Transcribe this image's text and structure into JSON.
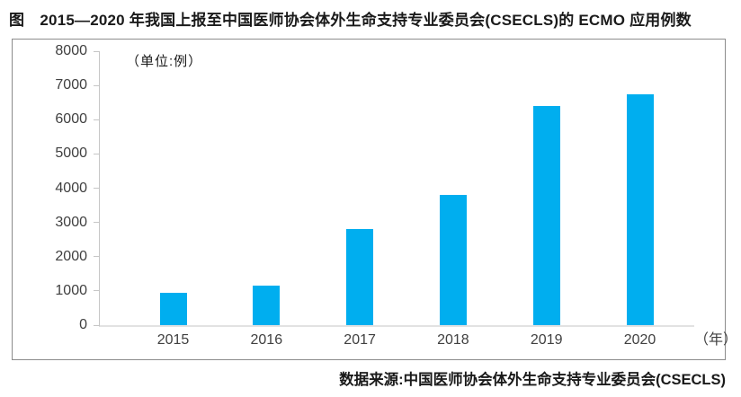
{
  "page": {
    "title": "图　2015—2020 年我国上报至中国医师协会体外生命支持专业委员会(CSECLS)的 ECMO 应用例数",
    "source": "数据来源:中国医师协会体外生命支持专业委员会(CSECLS)"
  },
  "chart_data": {
    "type": "bar",
    "title": "2015—2020 年我国上报至中国医师协会体外生命支持专业委员会(CSECLS)的 ECMO 应用例数",
    "unit_label": "（单位:例）",
    "x_axis_unit": "（年）",
    "categories": [
      "2015",
      "2016",
      "2017",
      "2018",
      "2019",
      "2020"
    ],
    "values": [
      950,
      1150,
      2800,
      3800,
      6400,
      6750
    ],
    "xlabel": "年",
    "ylabel": "例",
    "ylim": [
      0,
      8000
    ],
    "ytick_step": 1000,
    "yticks": [
      0,
      1000,
      2000,
      3000,
      4000,
      5000,
      6000,
      7000,
      8000
    ],
    "bar_color": "#00AEEF",
    "axis_color": "#c6c6c6",
    "tick_label_color": "#404040",
    "grid": "off",
    "legend": "none",
    "source": "数据来源:中国医师协会体外生命支持专业委员会(CSECLS)"
  }
}
